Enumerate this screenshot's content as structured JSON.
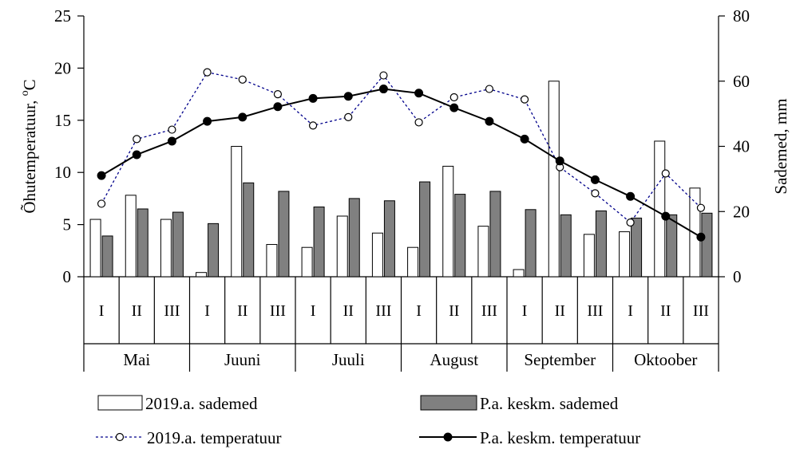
{
  "chart_data": {
    "type": "bar",
    "categories": [
      "I",
      "II",
      "III",
      "I",
      "II",
      "III",
      "I",
      "II",
      "III",
      "I",
      "II",
      "III",
      "I",
      "II",
      "III",
      "I",
      "II",
      "III"
    ],
    "months": [
      "Mai",
      "Juuni",
      "Juuli",
      "August",
      "September",
      "Oktoober"
    ],
    "y_left": {
      "label": "Õhutemperatuur, °C",
      "label_main": "Õhutemperatuur, ",
      "label_sup": "o",
      "label_unit": "C",
      "lim": [
        0,
        25
      ],
      "ticks": [
        "0",
        "5",
        "10",
        "15",
        "20",
        "25"
      ]
    },
    "y_right": {
      "label": "Sademed,  mm",
      "lim": [
        0,
        80
      ],
      "ticks": [
        "0",
        "20",
        "40",
        "60",
        "80"
      ]
    },
    "series": [
      {
        "name": "2019.a. sademed",
        "type": "bar",
        "axis": "right",
        "color": "#ffffff",
        "stroke": "#000000",
        "values": [
          17.6,
          25,
          17.6,
          1.3,
          40,
          9.9,
          9,
          18.6,
          13.4,
          9,
          33.9,
          15.5,
          2.2,
          60,
          13,
          13.8,
          41.6,
          27.2
        ]
      },
      {
        "name": "P.a. keskm. sademed",
        "type": "bar",
        "axis": "right",
        "color": "#808080",
        "stroke": "#000000",
        "values": [
          12.5,
          20.8,
          19.8,
          16.3,
          28.8,
          26.2,
          21.4,
          24,
          23.3,
          29.1,
          25.3,
          26.2,
          20.6,
          19,
          20.2,
          18,
          19,
          19.5
        ]
      },
      {
        "name": "2019.a. temperatuur",
        "type": "line",
        "axis": "left",
        "color": "#00008b",
        "values": [
          7.0,
          13.2,
          14.1,
          19.6,
          18.9,
          17.5,
          14.5,
          15.3,
          19.3,
          14.8,
          17.2,
          18.0,
          17.0,
          10.5,
          8.0,
          5.2,
          9.9,
          6.6
        ]
      },
      {
        "name": "P.a. keskm. temperatuur",
        "type": "line",
        "axis": "left",
        "color": "#000000",
        "values": [
          9.7,
          11.7,
          13.0,
          14.9,
          15.3,
          16.3,
          17.1,
          17.3,
          18.0,
          17.6,
          16.2,
          14.9,
          13.2,
          11.1,
          9.3,
          7.7,
          5.8,
          3.8
        ]
      }
    ],
    "grid": false,
    "legend_position": "bottom"
  }
}
